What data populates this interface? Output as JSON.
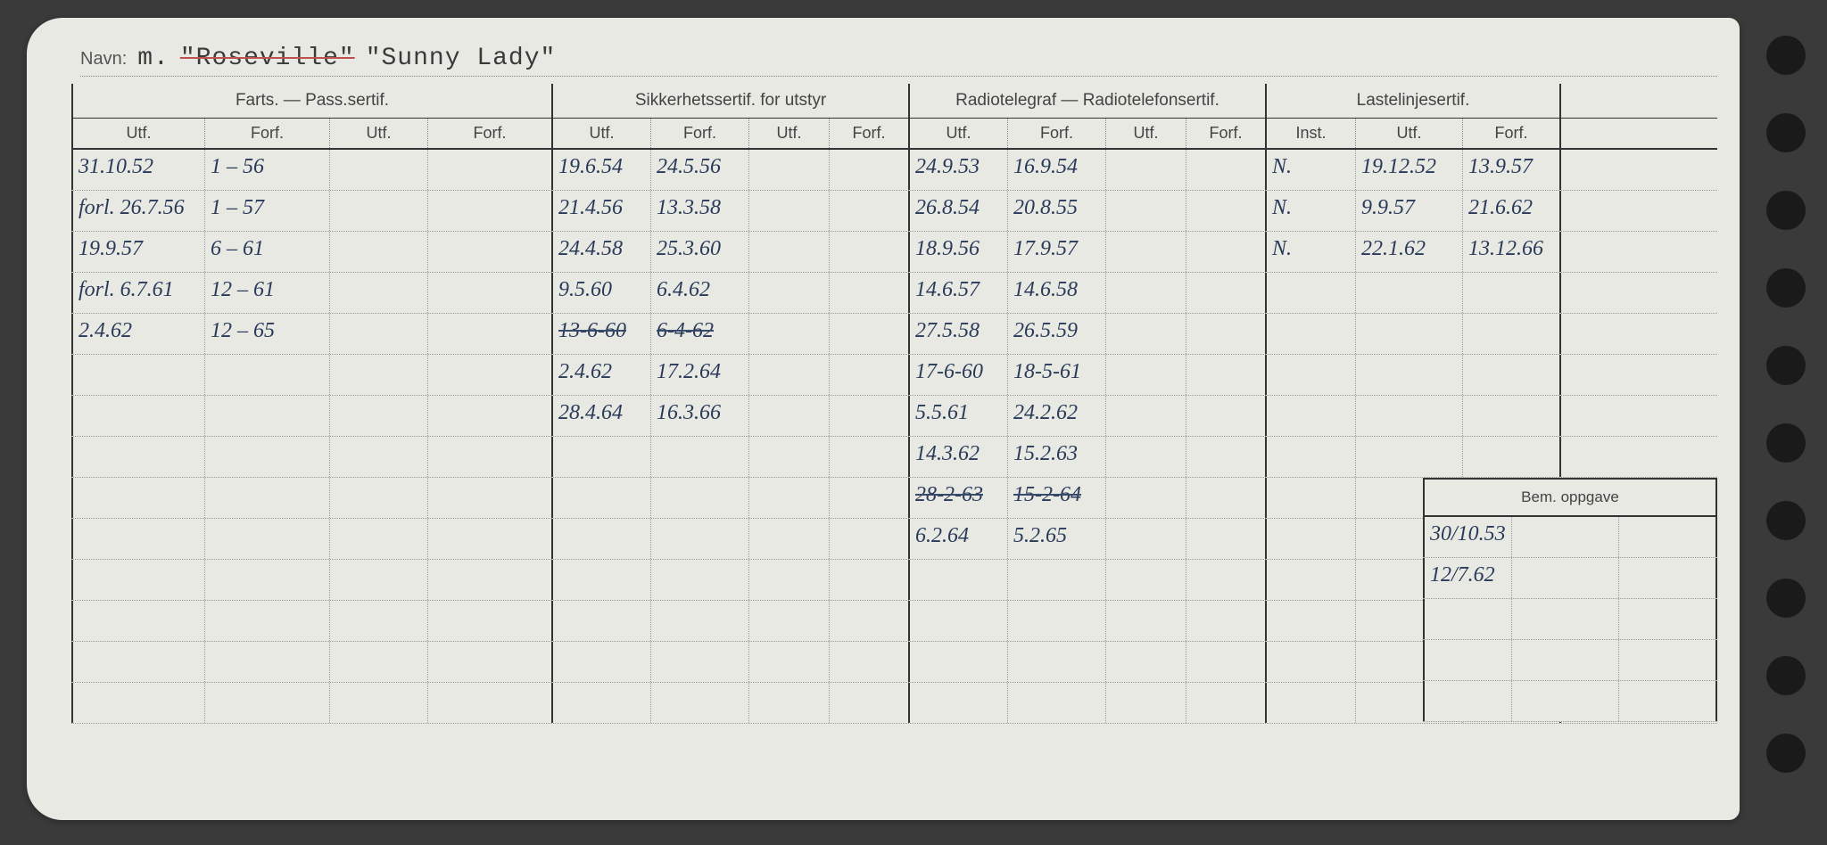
{
  "navn_label": "Navn:",
  "prefix": "m.",
  "name_struck": "\"Roseville\"",
  "name": "\"Sunny Lady\"",
  "sections": {
    "farts": "Farts. — Pass.sertif.",
    "sikkerhet": "Sikkerhetssertif. for utstyr",
    "radio": "Radiotelegraf — Radiotelefonsertif.",
    "laste": "Lastelinjesertif."
  },
  "cols": {
    "utf": "Utf.",
    "forf": "Forf.",
    "inst": "Inst."
  },
  "bem_label": "Bem. oppgave",
  "rows": [
    {
      "c0": "31.10.52",
      "c1": "1 – 56",
      "c4": "19.6.54",
      "c5": "24.5.56",
      "c8": "24.9.53",
      "c9": "16.9.54",
      "c12": "N.",
      "c13": "19.12.52",
      "c14": "13.9.57"
    },
    {
      "c0": "forl. 26.7.56",
      "c1": "1 – 57",
      "c4": "21.4.56",
      "c5": "13.3.58",
      "c8": "26.8.54",
      "c9": "20.8.55",
      "c12": "N.",
      "c13": "9.9.57",
      "c14": "21.6.62"
    },
    {
      "c0": "19.9.57",
      "c1": "6 – 61",
      "c4": "24.4.58",
      "c5": "25.3.60",
      "c8": "18.9.56",
      "c9": "17.9.57",
      "c12": "N.",
      "c13": "22.1.62",
      "c14": "13.12.66"
    },
    {
      "c0": "forl. 6.7.61",
      "c1": "12 – 61",
      "c4": "9.5.60",
      "c5": "6.4.62",
      "c8": "14.6.57",
      "c9": "14.6.58"
    },
    {
      "c0": "2.4.62",
      "c1": "12 – 65",
      "c4": "13-6-60",
      "c5": "6-4-62",
      "c8": "27.5.58",
      "c9": "26.5.59",
      "struck45": true
    },
    {
      "c4": "2.4.62",
      "c5": "17.2.64",
      "c8": "17-6-60",
      "c9": "18-5-61"
    },
    {
      "c4": "28.4.64",
      "c5": "16.3.66",
      "c8": "5.5.61",
      "c9": "24.2.62"
    },
    {
      "c8": "14.3.62",
      "c9": "15.2.63"
    },
    {
      "c8": "28-2-63",
      "c9": "15-2-64",
      "struck89": true
    },
    {
      "c8": "6.2.64",
      "c9": "5.2.65"
    },
    {},
    {},
    {},
    {}
  ],
  "bem_rows": [
    {
      "b0": "30/10.53"
    },
    {
      "b0": "12/7.62"
    },
    {},
    {},
    {}
  ],
  "colors": {
    "card_bg": "#e8e9e2",
    "body_bg": "#3a3a3a",
    "ink": "#2a3a5a",
    "print": "#444",
    "rule": "#333",
    "dotted": "#999",
    "strike_red": "#c05050"
  }
}
